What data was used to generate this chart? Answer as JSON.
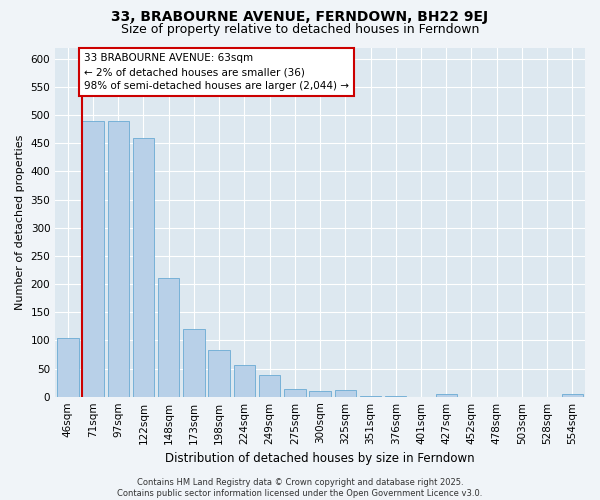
{
  "title": "33, BRABOURNE AVENUE, FERNDOWN, BH22 9EJ",
  "subtitle": "Size of property relative to detached houses in Ferndown",
  "xlabel": "Distribution of detached houses by size in Ferndown",
  "ylabel": "Number of detached properties",
  "categories": [
    "46sqm",
    "71sqm",
    "97sqm",
    "122sqm",
    "148sqm",
    "173sqm",
    "198sqm",
    "224sqm",
    "249sqm",
    "275sqm",
    "300sqm",
    "325sqm",
    "351sqm",
    "376sqm",
    "401sqm",
    "427sqm",
    "452sqm",
    "478sqm",
    "503sqm",
    "528sqm",
    "554sqm"
  ],
  "values": [
    105,
    490,
    490,
    460,
    210,
    120,
    83,
    57,
    38,
    13,
    10,
    12,
    1,
    1,
    0,
    5,
    0,
    0,
    0,
    0,
    5
  ],
  "bar_color": "#b8d0e8",
  "bar_edge_color": "#6aaad4",
  "highlight_color": "#cc0000",
  "annotation_box_color": "#ffffff",
  "annotation_box_edge": "#cc0000",
  "annotation_line1": "33 BRABOURNE AVENUE: 63sqm",
  "annotation_line2": "← 2% of detached houses are smaller (36)",
  "annotation_line3": "98% of semi-detached houses are larger (2,044) →",
  "ylim": [
    0,
    620
  ],
  "yticks": [
    0,
    50,
    100,
    150,
    200,
    250,
    300,
    350,
    400,
    450,
    500,
    550,
    600
  ],
  "plot_bg_color": "#dde8f0",
  "fig_bg_color": "#f0f4f8",
  "grid_color": "#ffffff",
  "footer": "Contains HM Land Registry data © Crown copyright and database right 2025.\nContains public sector information licensed under the Open Government Licence v3.0.",
  "title_fontsize": 10,
  "subtitle_fontsize": 9,
  "xlabel_fontsize": 8.5,
  "ylabel_fontsize": 8,
  "tick_fontsize": 7.5,
  "annotation_fontsize": 7.5,
  "footer_fontsize": 6
}
